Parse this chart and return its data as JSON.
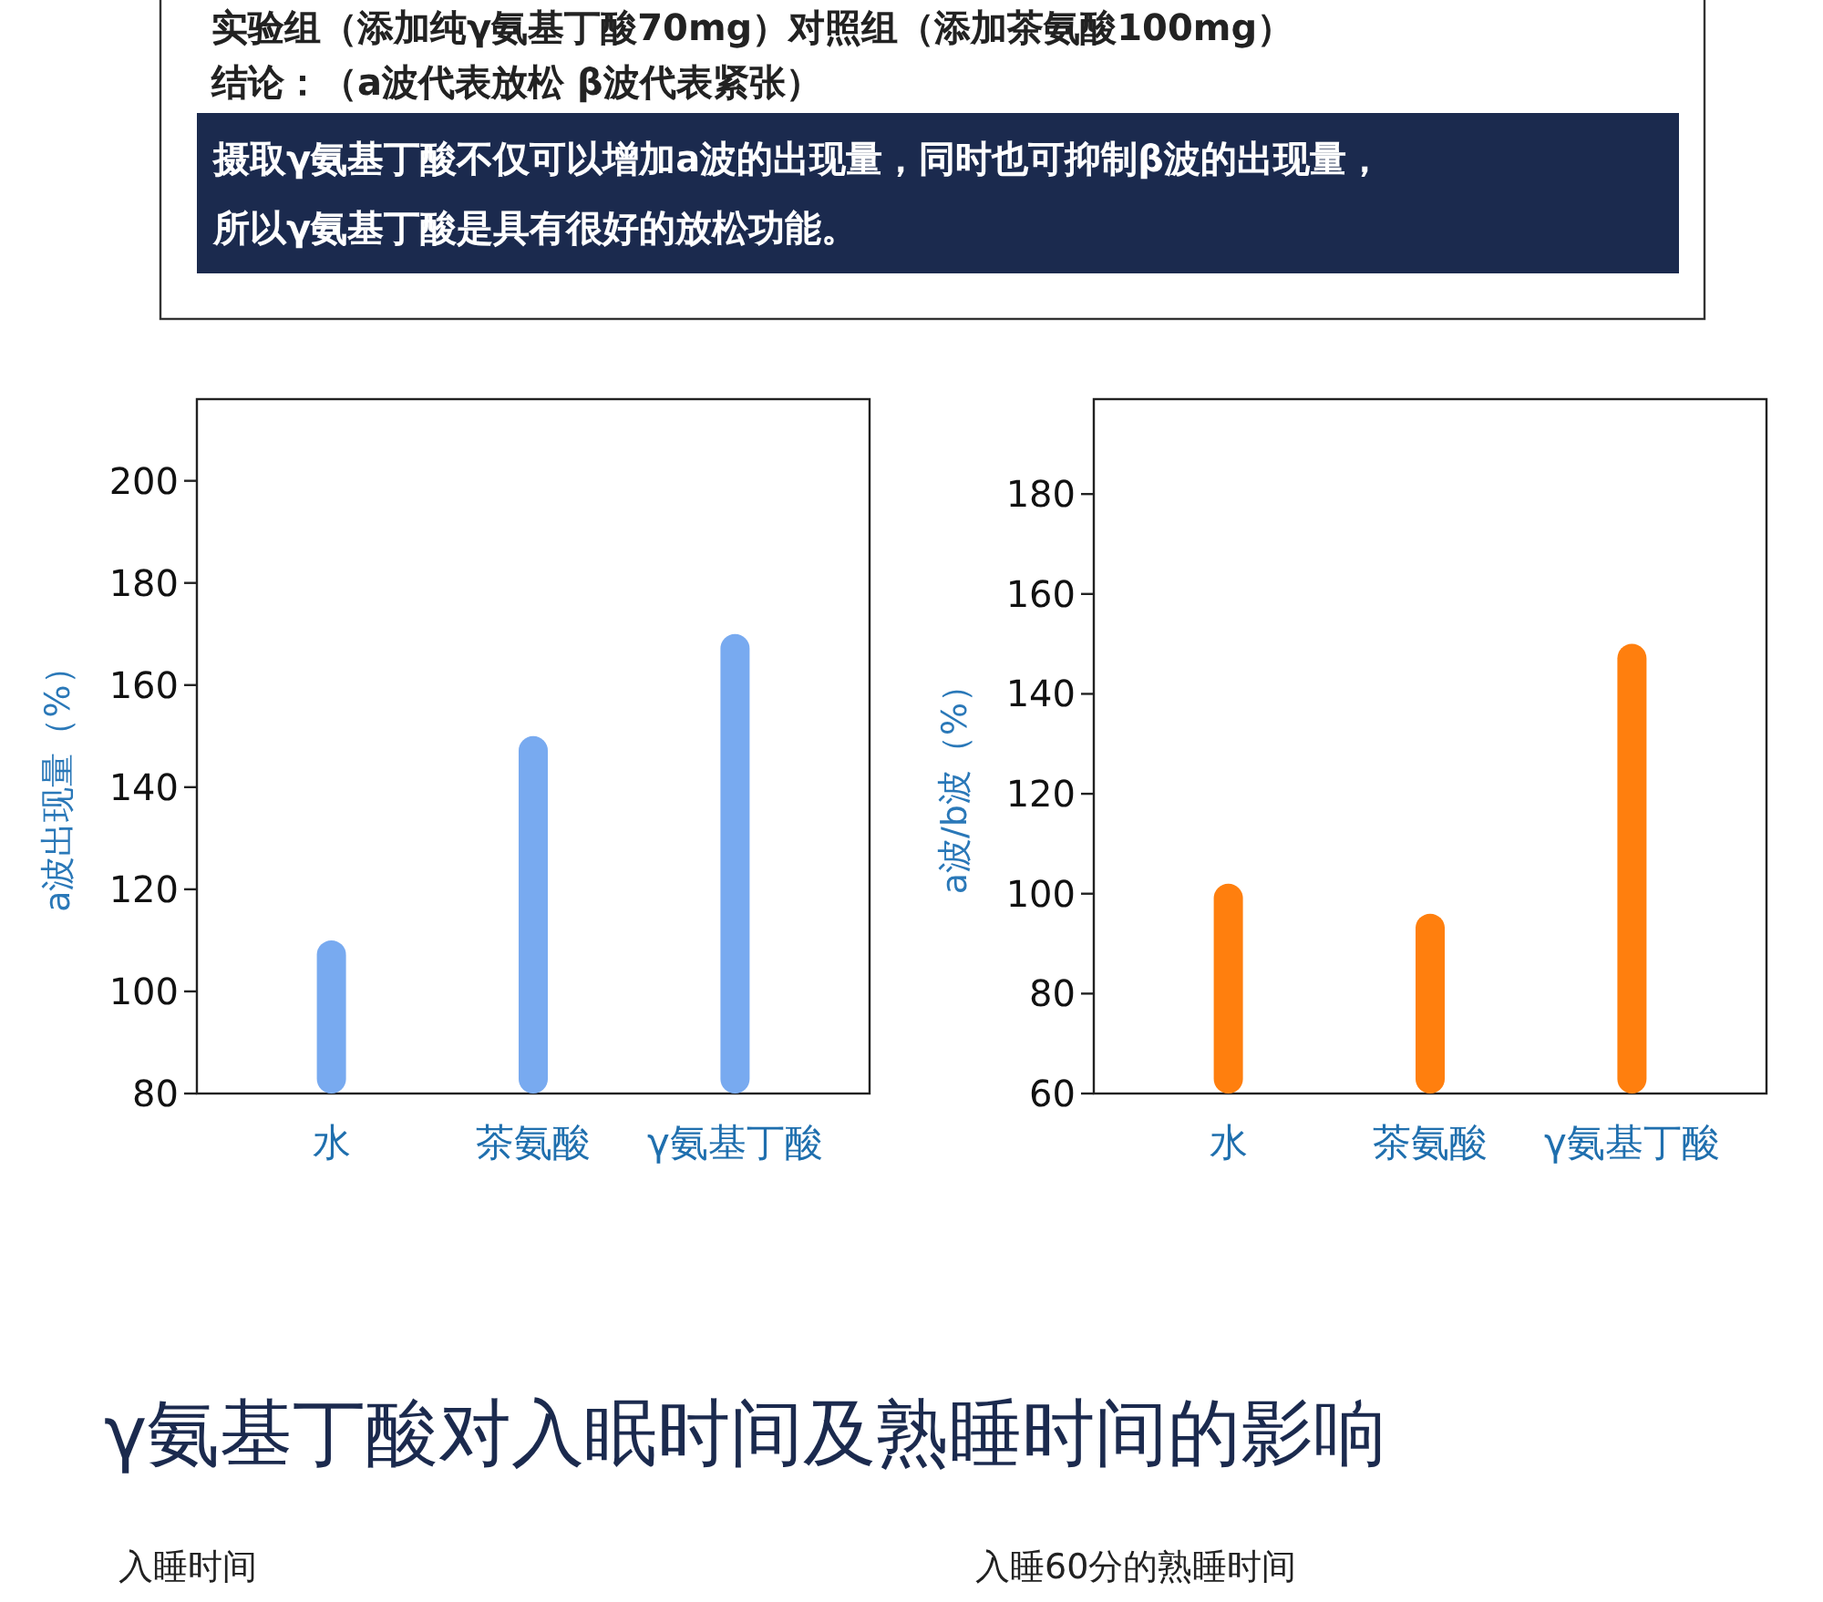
{
  "chart_data": [
    {
      "type": "other",
      "annotations": [
        "实验组（添加纯γ氨基丁酸70mg）对照组（添加茶氨酸100mg）",
        "结论：（a波代表放松  β波代表紧张）",
        "摄取γ氨基丁酸不仅可以增加a波的出现量，同时也可抑制β波的出现量，",
        "所以γ氨基丁酸是具有很好的放松功能。"
      ]
    },
    {
      "type": "bar",
      "ylabel": "a波出现量（%）",
      "categories": [
        "水",
        "茶氨酸",
        "γ氨基丁酸"
      ],
      "values": [
        110,
        150,
        170
      ],
      "color": "#78aaf0",
      "ylim": [
        80,
        216
      ],
      "yticks": [
        80,
        100,
        120,
        140,
        160,
        180,
        200
      ]
    },
    {
      "type": "bar",
      "ylabel": "a波/b波（%）",
      "categories": [
        "水",
        "茶氨酸",
        "γ氨基丁酸"
      ],
      "values": [
        102,
        96,
        150
      ],
      "color": "#ff7f0e",
      "ylim": [
        60,
        199
      ],
      "yticks": [
        60,
        80,
        100,
        120,
        140,
        160,
        180
      ]
    },
    {
      "type": "other",
      "title": "γ氨基丁酸对入眠时间及熟睡时间的影响",
      "annotations": [
        "入睡时间",
        "入睡60分的熟睡时间"
      ]
    }
  ]
}
